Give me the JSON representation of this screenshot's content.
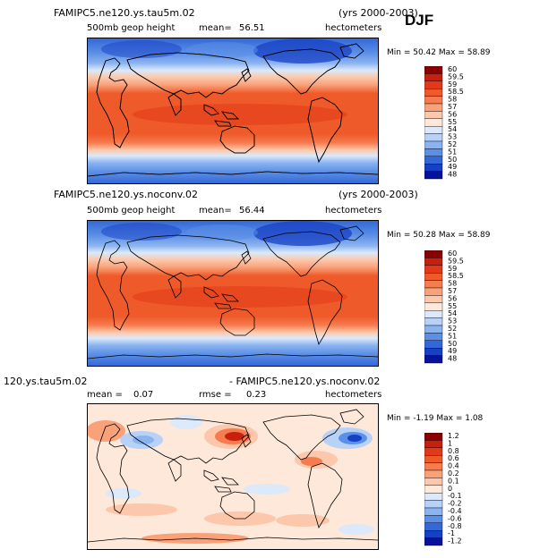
{
  "season": "DJF",
  "panels": [
    {
      "case": "FAMIPC5.ne120.ys.tau5m.02",
      "years": "(yrs 2000-2003)",
      "field": "500mb geop height",
      "mean_label": "mean=",
      "mean": "56.51",
      "units": "hectometers",
      "min_max": "Min =  50.42 Max =  58.89"
    },
    {
      "case": "FAMIPC5.ne120.ys.noconv.02",
      "years": "(yrs 2000-2003)",
      "field": "500mb geop height",
      "mean_label": "mean=",
      "mean": "56.44",
      "units": "hectometers",
      "min_max": "Min =  50.28 Max =  58.89"
    },
    {
      "case_a": "120.ys.tau5m.02",
      "case_b": "- FAMIPC5.ne120.ys.noconv.02",
      "mean_label": "mean =",
      "mean": "0.07",
      "rmse_label": "rmse =",
      "rmse": "0.23",
      "units": "hectometers",
      "min_max": "Min =  -1.19 Max =   1.08"
    }
  ],
  "chart_data": [
    {
      "type": "heatmap",
      "title": "500mb geop height",
      "subtitle": "FAMIPC5.ne120.ys.tau5m.02",
      "levels": [
        "60",
        "59.5",
        "59",
        "58.5",
        "58",
        "57",
        "56",
        "55",
        "54",
        "53",
        "52",
        "51",
        "50",
        "49",
        "48"
      ],
      "colors": [
        "#8b0000",
        "#c8200e",
        "#e23a18",
        "#ef5a2a",
        "#f57c4e",
        "#f9a27a",
        "#fcc7aa",
        "#fde8da",
        "#dbe9fb",
        "#b7d1f7",
        "#8ab3f0",
        "#5c8fe6",
        "#3468d8",
        "#1840c4",
        "#06129a"
      ]
    },
    {
      "type": "heatmap",
      "title": "500mb geop height",
      "subtitle": "FAMIPC5.ne120.ys.noconv.02",
      "levels": [
        "60",
        "59.5",
        "59",
        "58.5",
        "58",
        "57",
        "56",
        "55",
        "54",
        "53",
        "52",
        "51",
        "50",
        "49",
        "48"
      ],
      "colors": [
        "#8b0000",
        "#c8200e",
        "#e23a18",
        "#ef5a2a",
        "#f57c4e",
        "#f9a27a",
        "#fcc7aa",
        "#fde8da",
        "#dbe9fb",
        "#b7d1f7",
        "#8ab3f0",
        "#5c8fe6",
        "#3468d8",
        "#1840c4",
        "#06129a"
      ]
    },
    {
      "type": "heatmap",
      "title": "120.ys.tau5m.02 - FAMIPC5.ne120.ys.noconv.02",
      "levels": [
        "1.2",
        "1",
        "0.8",
        "0.6",
        "0.4",
        "0.2",
        "0.1",
        "0",
        "-0.1",
        "-0.2",
        "-0.4",
        "-0.6",
        "-0.8",
        "-1",
        "-1.2"
      ],
      "colors": [
        "#8b0000",
        "#c8200e",
        "#e23a18",
        "#ef5a2a",
        "#f57c4e",
        "#f9a27a",
        "#fcc7aa",
        "#fde8da",
        "#dbe9fb",
        "#b7d1f7",
        "#8ab3f0",
        "#5c8fe6",
        "#3468d8",
        "#1840c4",
        "#06129a"
      ]
    }
  ]
}
